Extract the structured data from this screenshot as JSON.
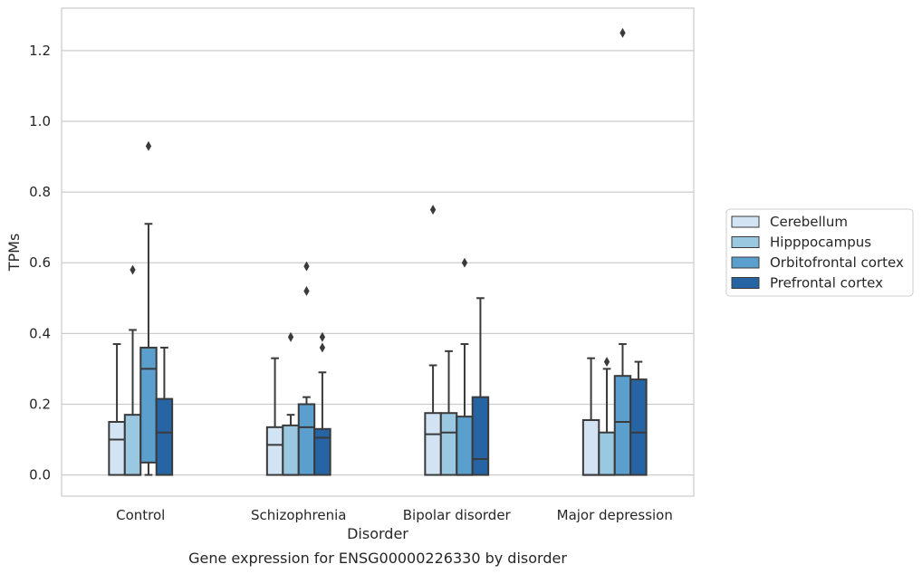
{
  "chart_data": {
    "type": "box",
    "xlabel": "Disorder",
    "ylabel": "TPMs",
    "caption": "Gene expression for ENSG00000226330 by disorder",
    "ylim": [
      -0.06,
      1.32
    ],
    "yticks": [
      0.0,
      0.2,
      0.4,
      0.6,
      0.8,
      1.0,
      1.2
    ],
    "ytick_labels": [
      "0.0",
      "0.2",
      "0.4",
      "0.6",
      "0.8",
      "1.0",
      "1.2"
    ],
    "grid": "horizontal",
    "legend_position": "right",
    "categories": [
      "Control",
      "Schizophrenia",
      "Bipolar disorder",
      "Major depression"
    ],
    "series": [
      {
        "name": "Cerebellum",
        "color": "#d2e3f3",
        "boxes": [
          {
            "q1": 0.0,
            "median": 0.1,
            "q3": 0.15,
            "whisker_low": 0.0,
            "whisker_high": 0.37,
            "outliers": []
          },
          {
            "q1": 0.0,
            "median": 0.085,
            "q3": 0.135,
            "whisker_low": 0.0,
            "whisker_high": 0.33,
            "outliers": []
          },
          {
            "q1": 0.0,
            "median": 0.115,
            "q3": 0.175,
            "whisker_low": 0.0,
            "whisker_high": 0.31,
            "outliers": [
              0.75
            ]
          },
          {
            "q1": 0.0,
            "median": 0.0,
            "q3": 0.155,
            "whisker_low": 0.0,
            "whisker_high": 0.33,
            "outliers": []
          }
        ]
      },
      {
        "name": "Hipppocampus",
        "color": "#9ac8e0",
        "boxes": [
          {
            "q1": 0.0,
            "median": 0.0,
            "q3": 0.17,
            "whisker_low": 0.0,
            "whisker_high": 0.41,
            "outliers": [
              0.58
            ]
          },
          {
            "q1": 0.0,
            "median": 0.0,
            "q3": 0.14,
            "whisker_low": 0.0,
            "whisker_high": 0.17,
            "outliers": [
              0.39
            ]
          },
          {
            "q1": 0.0,
            "median": 0.12,
            "q3": 0.175,
            "whisker_low": 0.0,
            "whisker_high": 0.35,
            "outliers": []
          },
          {
            "q1": 0.0,
            "median": 0.0,
            "q3": 0.12,
            "whisker_low": 0.0,
            "whisker_high": 0.3,
            "outliers": [
              0.32
            ]
          }
        ]
      },
      {
        "name": "Orbitofrontal cortex",
        "color": "#5a9fcd",
        "boxes": [
          {
            "q1": 0.035,
            "median": 0.3,
            "q3": 0.36,
            "whisker_low": 0.0,
            "whisker_high": 0.71,
            "outliers": [
              0.93
            ]
          },
          {
            "q1": 0.0,
            "median": 0.135,
            "q3": 0.2,
            "whisker_low": 0.0,
            "whisker_high": 0.22,
            "outliers": [
              0.52,
              0.59
            ]
          },
          {
            "q1": 0.0,
            "median": 0.0,
            "q3": 0.165,
            "whisker_low": 0.0,
            "whisker_high": 0.37,
            "outliers": [
              0.6
            ]
          },
          {
            "q1": 0.0,
            "median": 0.15,
            "q3": 0.28,
            "whisker_low": 0.0,
            "whisker_high": 0.37,
            "outliers": [
              1.25
            ]
          }
        ]
      },
      {
        "name": "Prefrontal cortex",
        "color": "#2664a3",
        "boxes": [
          {
            "q1": 0.0,
            "median": 0.12,
            "q3": 0.215,
            "whisker_low": 0.0,
            "whisker_high": 0.36,
            "outliers": []
          },
          {
            "q1": 0.0,
            "median": 0.105,
            "q3": 0.13,
            "whisker_low": 0.0,
            "whisker_high": 0.29,
            "outliers": [
              0.36,
              0.39
            ]
          },
          {
            "q1": 0.0,
            "median": 0.045,
            "q3": 0.22,
            "whisker_low": 0.0,
            "whisker_high": 0.5,
            "outliers": []
          },
          {
            "q1": 0.0,
            "median": 0.12,
            "q3": 0.27,
            "whisker_low": 0.0,
            "whisker_high": 0.32,
            "outliers": []
          }
        ]
      }
    ]
  }
}
